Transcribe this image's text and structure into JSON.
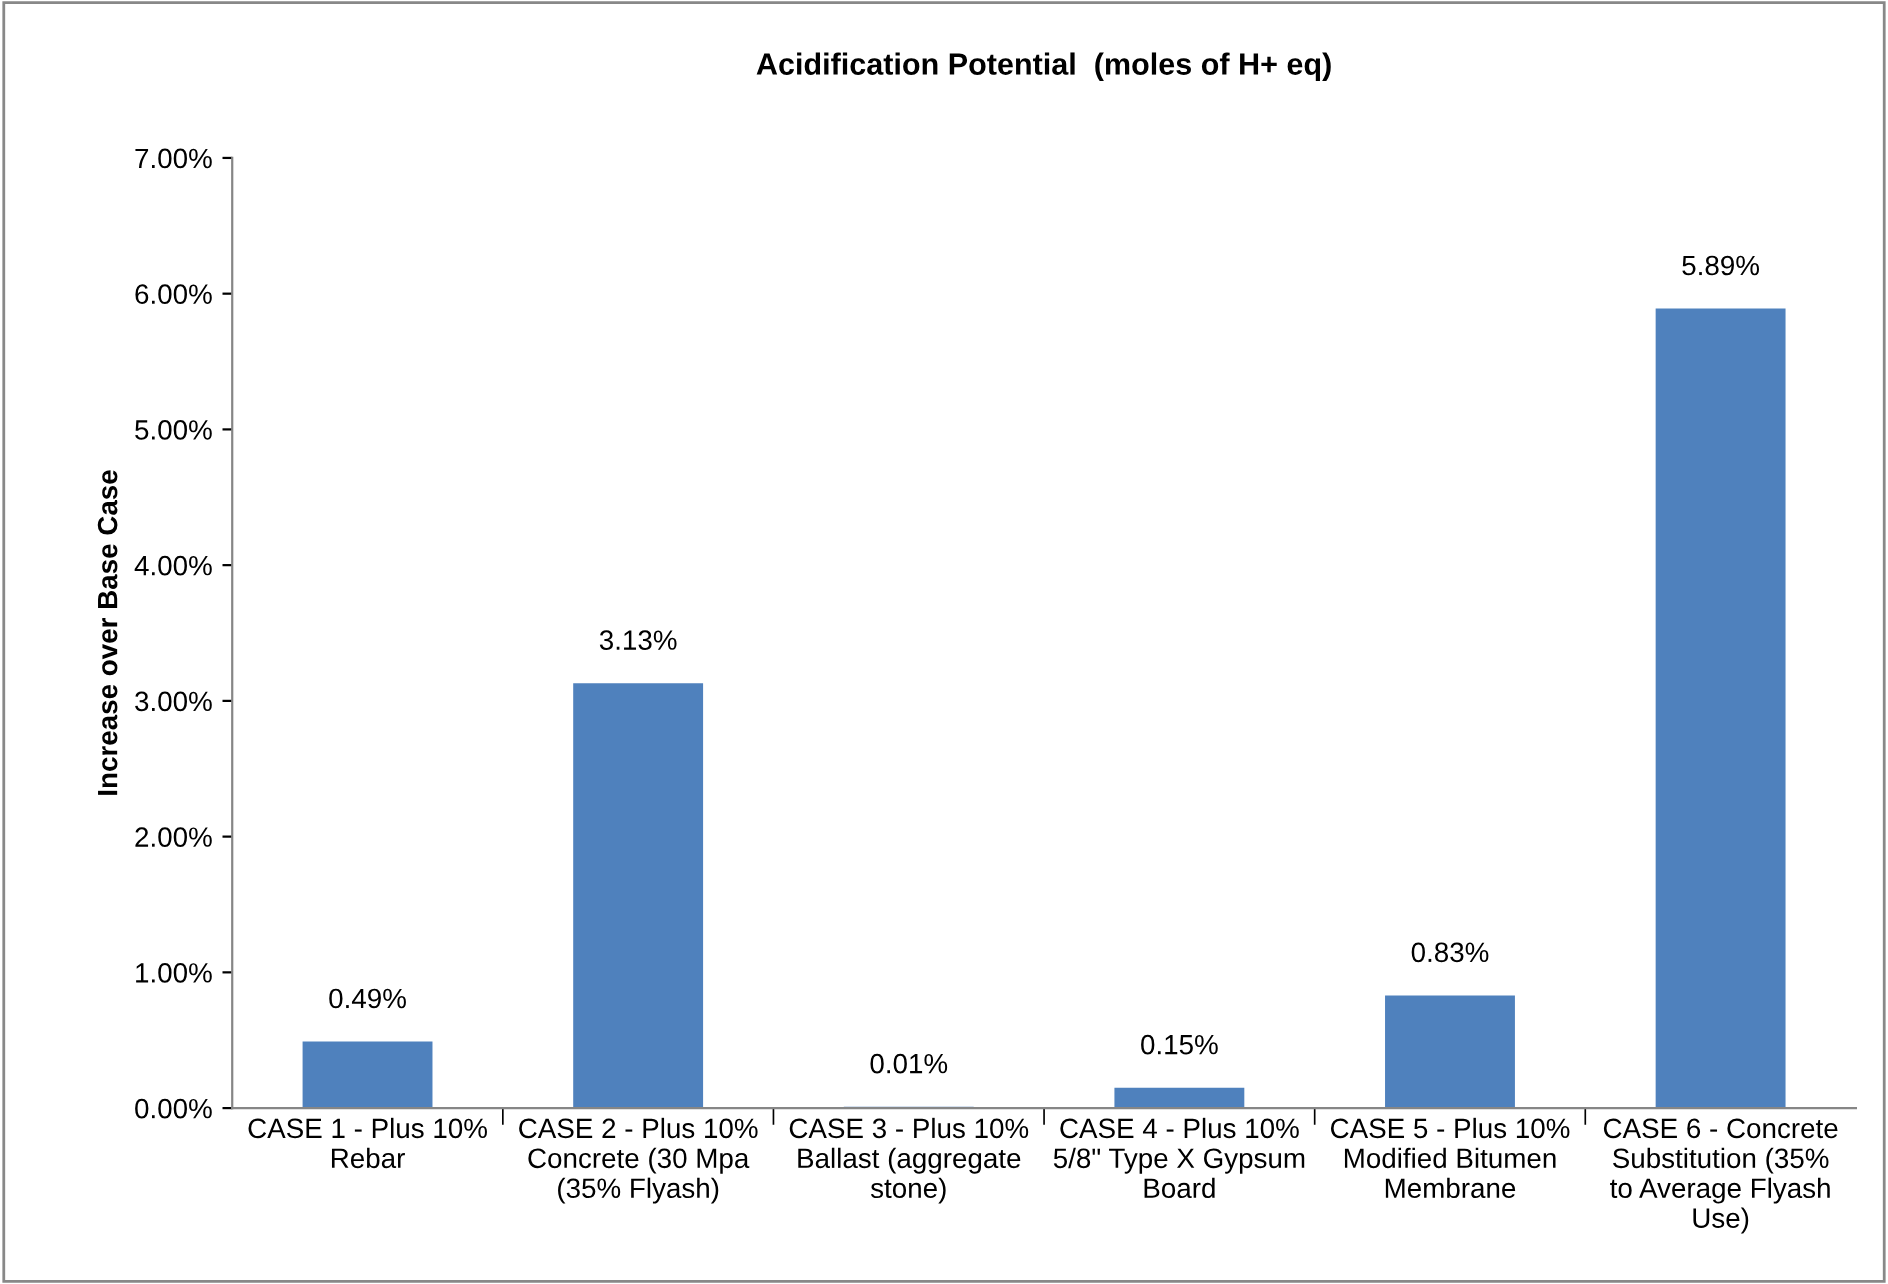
{
  "chart_data": {
    "type": "bar",
    "title": "Acidification Potential  (moles of H+ eq)",
    "ylabel": "Increase over Base Case",
    "categories": [
      "CASE 1 - Plus 10% Rebar",
      "CASE 2 - Plus 10% Concrete (30 Mpa (35% Flyash)",
      "CASE 3 - Plus 10% Ballast (aggregate stone)",
      "CASE 4 - Plus 10% 5/8\" Type X Gypsum Board",
      "CASE 5 - Plus 10% Modified Bitumen Membrane",
      "CASE 6 - Concrete Substitution (35% to Average Flyash Use)"
    ],
    "values": [
      0.49,
      3.13,
      0.01,
      0.15,
      0.83,
      5.89
    ],
    "value_labels": [
      "0.49%",
      "3.13%",
      "0.01%",
      "0.15%",
      "0.83%",
      "5.89%"
    ],
    "color": "#4f81bd",
    "ylim": [
      0,
      7
    ],
    "yticks": [
      {
        "value": 0,
        "label": "0.00%"
      },
      {
        "value": 1,
        "label": "1.00%"
      },
      {
        "value": 2,
        "label": "2.00%"
      },
      {
        "value": 3,
        "label": "3.00%"
      },
      {
        "value": 4,
        "label": "4.00%"
      },
      {
        "value": 5,
        "label": "5.00%"
      },
      {
        "value": 6,
        "label": "6.00%"
      },
      {
        "value": 7,
        "label": "7.00%"
      }
    ],
    "grid": false,
    "legend": false
  }
}
